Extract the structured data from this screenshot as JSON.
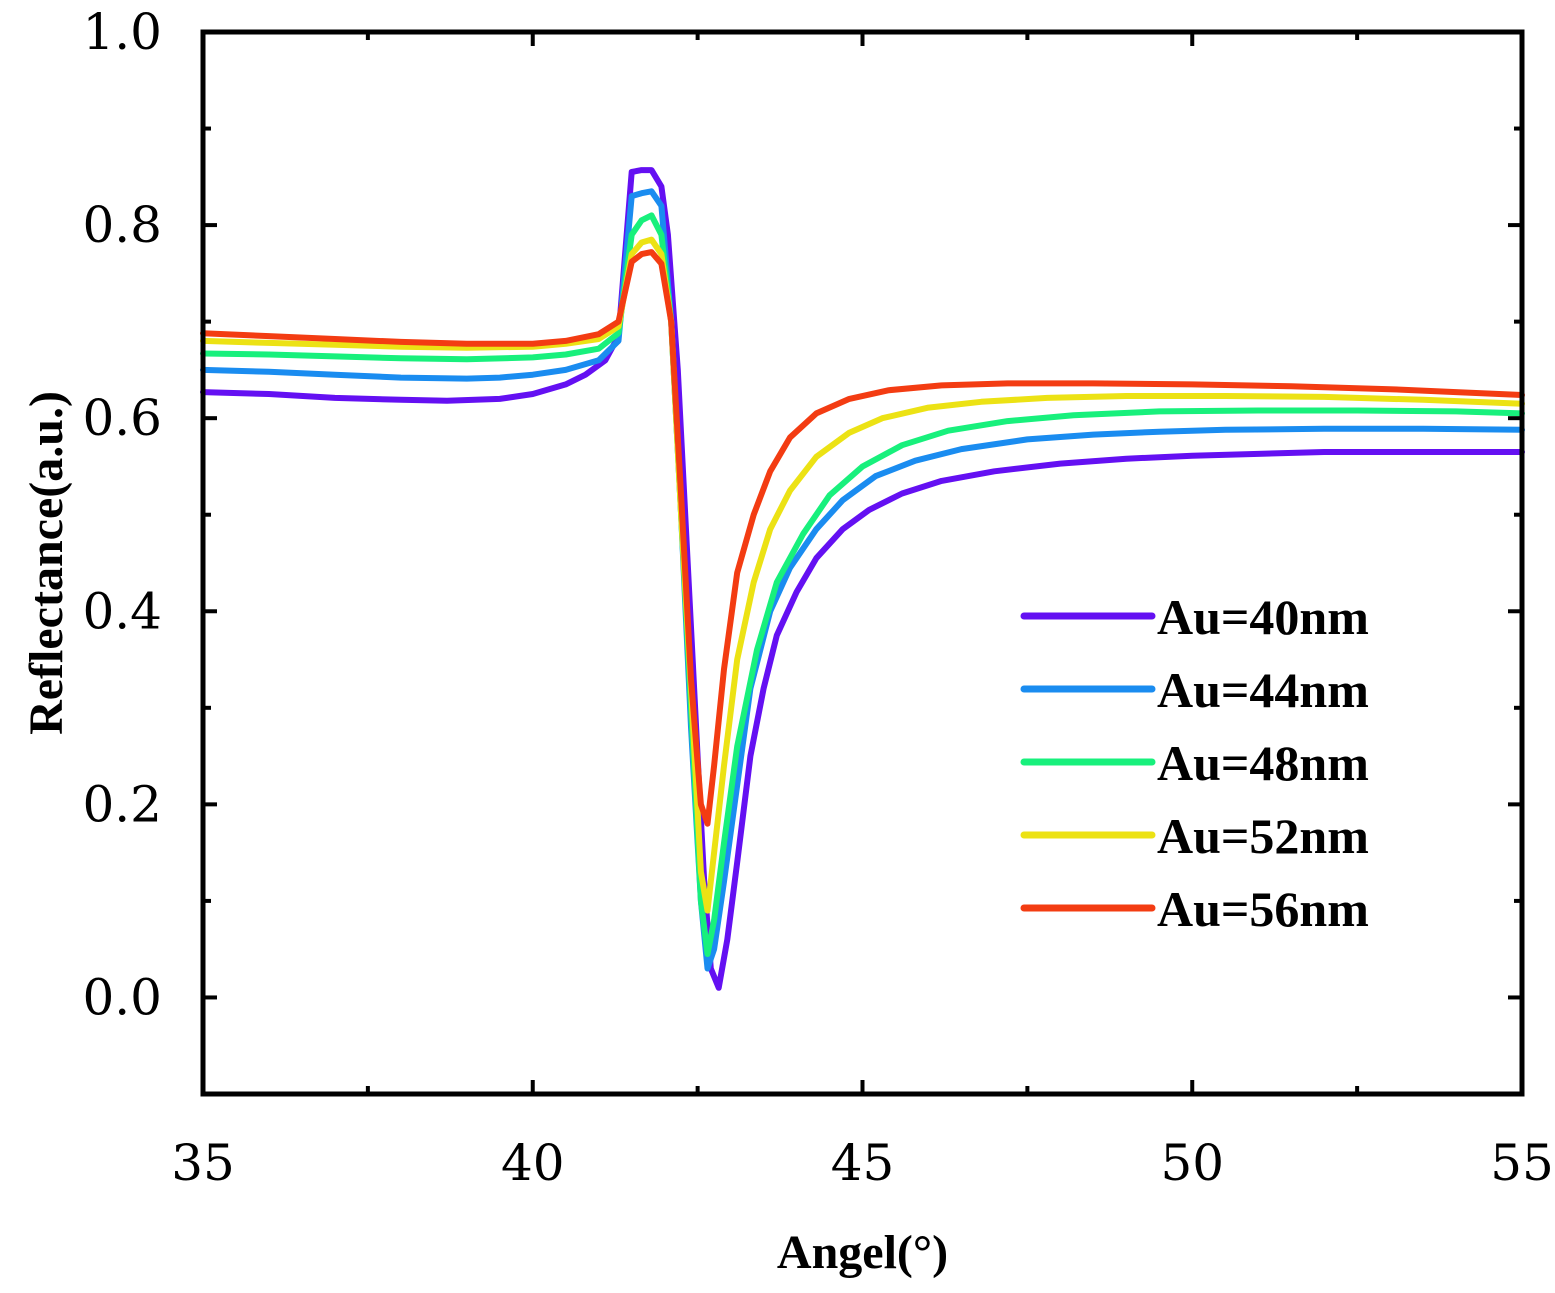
{
  "chart_data": {
    "type": "line",
    "title": "",
    "xlabel": "Angel(°)",
    "ylabel": "Reflectance(a.u.)",
    "xlim": [
      35,
      55
    ],
    "ylim": [
      -0.1,
      1.0
    ],
    "xticks": [
      35,
      40,
      45,
      50,
      55
    ],
    "xtick_labels": [
      "35",
      "40",
      "45",
      "50",
      "55"
    ],
    "yticks": [
      0.0,
      0.2,
      0.4,
      0.6,
      0.8,
      1.0
    ],
    "ytick_labels": [
      "0.0",
      "0.2",
      "0.4",
      "0.6",
      "0.8",
      "1.0"
    ],
    "grid": false,
    "legend_position": "lower-right",
    "series": [
      {
        "name": "Au=40nm",
        "color": "#6410f2",
        "x": [
          35,
          36,
          37,
          38,
          38.7,
          39.5,
          40,
          40.5,
          40.8,
          41.1,
          41.3,
          41.5,
          41.65,
          41.8,
          41.95,
          42.05,
          42.2,
          42.35,
          42.5,
          42.6,
          42.7,
          42.82,
          42.95,
          43.1,
          43.3,
          43.5,
          43.7,
          44,
          44.3,
          44.7,
          45.1,
          45.6,
          46.2,
          47,
          48,
          49,
          50,
          51,
          52,
          53,
          54,
          55
        ],
        "values": [
          0.627,
          0.625,
          0.621,
          0.619,
          0.618,
          0.62,
          0.625,
          0.635,
          0.645,
          0.66,
          0.685,
          0.855,
          0.857,
          0.857,
          0.84,
          0.79,
          0.65,
          0.45,
          0.25,
          0.12,
          0.03,
          0.01,
          0.06,
          0.14,
          0.25,
          0.32,
          0.375,
          0.42,
          0.455,
          0.485,
          0.505,
          0.522,
          0.535,
          0.545,
          0.553,
          0.558,
          0.561,
          0.563,
          0.565,
          0.565,
          0.565,
          0.565
        ]
      },
      {
        "name": "Au=44nm",
        "color": "#1a8cf0",
        "x": [
          35,
          36,
          37,
          38,
          39,
          39.5,
          40,
          40.5,
          41,
          41.3,
          41.5,
          41.65,
          41.8,
          41.95,
          42.1,
          42.25,
          42.4,
          42.55,
          42.65,
          42.75,
          42.9,
          43.1,
          43.3,
          43.6,
          43.9,
          44.3,
          44.7,
          45.2,
          45.8,
          46.5,
          47.5,
          48.5,
          49.5,
          50.5,
          52,
          53.5,
          55
        ],
        "values": [
          0.65,
          0.648,
          0.645,
          0.642,
          0.641,
          0.642,
          0.645,
          0.65,
          0.66,
          0.68,
          0.83,
          0.833,
          0.835,
          0.82,
          0.7,
          0.5,
          0.28,
          0.1,
          0.03,
          0.05,
          0.12,
          0.22,
          0.32,
          0.4,
          0.445,
          0.485,
          0.515,
          0.54,
          0.556,
          0.568,
          0.578,
          0.583,
          0.586,
          0.588,
          0.589,
          0.589,
          0.588
        ]
      },
      {
        "name": "Au=48nm",
        "color": "#18f07c",
        "x": [
          35,
          36,
          37,
          38,
          39,
          40,
          40.5,
          41,
          41.3,
          41.5,
          41.65,
          41.8,
          41.95,
          42.1,
          42.25,
          42.4,
          42.55,
          42.65,
          42.75,
          42.9,
          43.1,
          43.4,
          43.7,
          44.1,
          44.5,
          45,
          45.6,
          46.3,
          47.2,
          48.2,
          49.5,
          51,
          52.5,
          54,
          55
        ],
        "values": [
          0.667,
          0.666,
          0.664,
          0.662,
          0.661,
          0.663,
          0.666,
          0.672,
          0.688,
          0.79,
          0.805,
          0.81,
          0.79,
          0.7,
          0.5,
          0.3,
          0.1,
          0.045,
          0.08,
          0.16,
          0.26,
          0.36,
          0.43,
          0.48,
          0.52,
          0.55,
          0.572,
          0.587,
          0.597,
          0.603,
          0.607,
          0.608,
          0.608,
          0.607,
          0.605
        ]
      },
      {
        "name": "Au=52nm",
        "color": "#ece214",
        "x": [
          35,
          36,
          37,
          38,
          39,
          40,
          40.5,
          41,
          41.3,
          41.5,
          41.65,
          41.8,
          41.95,
          42.1,
          42.25,
          42.4,
          42.55,
          42.65,
          42.75,
          42.9,
          43.1,
          43.35,
          43.6,
          43.9,
          44.3,
          44.8,
          45.3,
          46,
          46.8,
          47.8,
          49,
          50.5,
          52,
          53.5,
          55
        ],
        "values": [
          0.68,
          0.678,
          0.676,
          0.674,
          0.673,
          0.674,
          0.677,
          0.682,
          0.695,
          0.77,
          0.782,
          0.785,
          0.77,
          0.7,
          0.5,
          0.32,
          0.13,
          0.09,
          0.15,
          0.24,
          0.35,
          0.43,
          0.485,
          0.525,
          0.56,
          0.585,
          0.6,
          0.611,
          0.617,
          0.621,
          0.623,
          0.623,
          0.622,
          0.619,
          0.615
        ]
      },
      {
        "name": "Au=56nm",
        "color": "#f33c12",
        "x": [
          35,
          36,
          37,
          38,
          39,
          40,
          40.5,
          41,
          41.3,
          41.5,
          41.65,
          41.8,
          41.95,
          42.1,
          42.25,
          42.4,
          42.55,
          42.65,
          42.75,
          42.9,
          43.1,
          43.35,
          43.6,
          43.9,
          44.3,
          44.8,
          45.4,
          46.2,
          47.2,
          48.5,
          50,
          51.5,
          53,
          54,
          55
        ],
        "values": [
          0.688,
          0.685,
          0.682,
          0.679,
          0.677,
          0.677,
          0.68,
          0.687,
          0.7,
          0.762,
          0.77,
          0.772,
          0.76,
          0.7,
          0.52,
          0.33,
          0.2,
          0.18,
          0.24,
          0.34,
          0.44,
          0.5,
          0.545,
          0.58,
          0.605,
          0.62,
          0.629,
          0.634,
          0.636,
          0.636,
          0.635,
          0.633,
          0.63,
          0.627,
          0.624
        ]
      }
    ]
  }
}
